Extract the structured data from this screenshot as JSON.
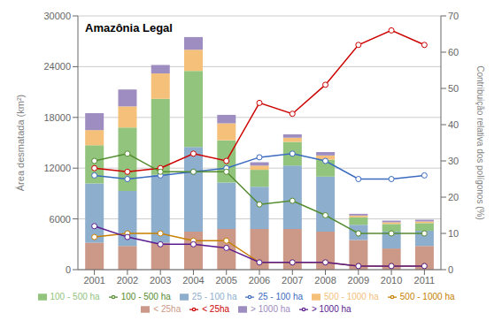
{
  "chart_data": {
    "type": "bar",
    "stacked": true,
    "annotation": "Amazônia Legal",
    "ylabel": "Área desmatada (km²)",
    "y2label": "Contribuição relativa dos polígonos (%)",
    "categories": [
      "2001",
      "2002",
      "2003",
      "2004",
      "2005",
      "2006",
      "2007",
      "2008",
      "2009",
      "2010",
      "2011"
    ],
    "ylim": [
      0,
      30000
    ],
    "yticks": [
      0,
      6000,
      12000,
      18000,
      24000,
      30000
    ],
    "y2lim": [
      0,
      70
    ],
    "y2ticks": [
      0,
      10,
      20,
      30,
      40,
      50,
      60,
      70
    ],
    "grid": true,
    "legend": "bottom",
    "series": [
      {
        "name": "< 25ha",
        "color": "#cc9988",
        "values": [
          3200,
          2800,
          3200,
          4500,
          4800,
          4800,
          4800,
          4500,
          3500,
          2500,
          2800
        ]
      },
      {
        "name": "25 - 100 ha",
        "color": "#8eaece",
        "values": [
          7000,
          6500,
          8000,
          10000,
          5500,
          5000,
          7500,
          6500,
          1800,
          2000,
          1800
        ]
      },
      {
        "name": "100 - 500 ha",
        "color": "#92c47e",
        "values": [
          4500,
          7500,
          9000,
          9000,
          5000,
          2000,
          2800,
          2000,
          900,
          900,
          900
        ]
      },
      {
        "name": "500 - 1000 ha",
        "color": "#f5c07a",
        "values": [
          1800,
          2500,
          3000,
          2500,
          2000,
          500,
          500,
          500,
          200,
          200,
          200
        ]
      },
      {
        "name": "> 1000 ha",
        "color": "#9e8dc0",
        "values": [
          2000,
          2000,
          1000,
          1500,
          1000,
          400,
          400,
          400,
          200,
          200,
          200
        ]
      },
      {
        "name": "< 25ha",
        "type": "line",
        "axis": "y2",
        "marker": "circle",
        "color": "#cc0000",
        "values": [
          28,
          27,
          28,
          32,
          30,
          46,
          43,
          51,
          62,
          66,
          62
        ]
      },
      {
        "name": "25 - 100 ha",
        "type": "line",
        "axis": "y2",
        "marker": "circle",
        "color": "#3a6bbf",
        "values": [
          26,
          25,
          26,
          27,
          28,
          31,
          32,
          30,
          25,
          25,
          26
        ]
      },
      {
        "name": "100 - 500 ha",
        "type": "line",
        "axis": "y2",
        "marker": "circle",
        "color": "#548c30",
        "values": [
          30,
          32,
          27,
          27,
          27,
          18,
          19,
          15,
          10,
          10,
          10
        ]
      },
      {
        "name": "500 - 1000 ha",
        "type": "line",
        "axis": "y2",
        "marker": "circle",
        "color": "#c88000",
        "values": [
          9,
          10,
          10,
          8,
          8,
          2,
          2,
          2,
          1,
          1,
          1
        ]
      },
      {
        "name": "> 1000 ha",
        "type": "line",
        "axis": "y2",
        "marker": "circle",
        "color": "#5a1a90",
        "values": [
          12,
          9,
          7,
          7,
          6,
          2,
          2,
          2,
          1,
          1,
          1
        ]
      }
    ]
  }
}
